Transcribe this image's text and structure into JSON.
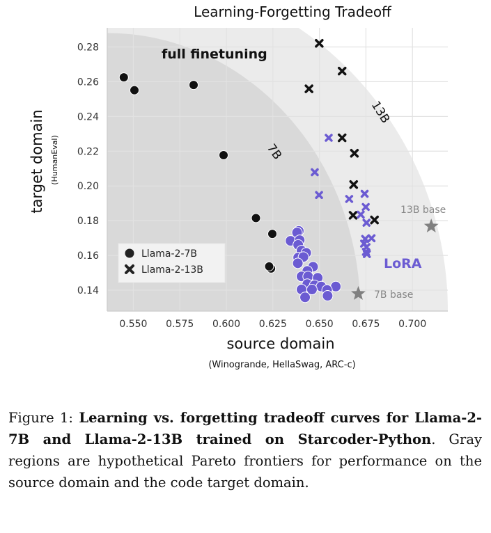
{
  "chart_data": {
    "type": "scatter",
    "title": "Learning-Forgetting Tradeoff",
    "xlabel": "source domain",
    "xlabel_sub": "(Winogrande, HellaSwag, ARC-c)",
    "ylabel": "target domain",
    "ylabel_sub": "(HumanEval)",
    "xlim": [
      0.536,
      0.719
    ],
    "ylim": [
      0.128,
      0.291
    ],
    "xticks": [
      "0.550",
      "0.575",
      "0.600",
      "0.625",
      "0.650",
      "0.675",
      "0.700"
    ],
    "yticks": [
      "0.14",
      "0.16",
      "0.18",
      "0.20",
      "0.22",
      "0.24",
      "0.26",
      "0.28"
    ],
    "grid": true,
    "legend_position": "lower-left",
    "legend": [
      {
        "label": "Llama-2-7B",
        "marker": "circle"
      },
      {
        "label": "Llama-2-13B",
        "marker": "x"
      }
    ],
    "colors": {
      "full_finetuning": "#111111",
      "lora": "#6b5bd2",
      "base": "#808080",
      "frontier_7b": "#d9d9d9",
      "frontier_13b": "#ebebeb"
    },
    "frontiers": [
      {
        "label": "13B",
        "x_intercept": 0.719,
        "y_intercept": 0.325
      },
      {
        "label": "7B",
        "x_intercept": 0.672,
        "y_intercept": 0.288
      }
    ],
    "annotations": {
      "full_finetuning": "full finetuning",
      "lora": "LoRA",
      "base_13b": "13B base",
      "base_7b": "7B base"
    },
    "series": [
      {
        "method": "full finetuning",
        "model": "Llama-2-7B",
        "marker": "circle",
        "points": [
          [
            0.5449,
            0.2625
          ],
          [
            0.5506,
            0.2551
          ],
          [
            0.5824,
            0.2581
          ],
          [
            0.5985,
            0.2177
          ],
          [
            0.6159,
            0.1815
          ],
          [
            0.6247,
            0.1724
          ],
          [
            0.624,
            0.1525
          ],
          [
            0.623,
            0.1537
          ]
        ]
      },
      {
        "method": "full finetuning",
        "model": "Llama-2-13B",
        "marker": "x",
        "points": [
          [
            0.6499,
            0.2821
          ],
          [
            0.6622,
            0.2661
          ],
          [
            0.6444,
            0.2559
          ],
          [
            0.6622,
            0.2277
          ],
          [
            0.6688,
            0.2188
          ],
          [
            0.6684,
            0.2008
          ],
          [
            0.6681,
            0.1831
          ],
          [
            0.6796,
            0.1804
          ]
        ]
      },
      {
        "method": "LoRA",
        "model": "Llama-2-7B",
        "marker": "circle",
        "points": [
          [
            0.6389,
            0.1741
          ],
          [
            0.638,
            0.1732
          ],
          [
            0.6345,
            0.1684
          ],
          [
            0.6394,
            0.1688
          ],
          [
            0.6386,
            0.1661
          ],
          [
            0.6404,
            0.1628
          ],
          [
            0.6429,
            0.1615
          ],
          [
            0.6386,
            0.1588
          ],
          [
            0.6414,
            0.1591
          ],
          [
            0.6384,
            0.1555
          ],
          [
            0.6466,
            0.1535
          ],
          [
            0.6435,
            0.1511
          ],
          [
            0.6404,
            0.1479
          ],
          [
            0.6439,
            0.1479
          ],
          [
            0.6491,
            0.1471
          ],
          [
            0.6435,
            0.1435
          ],
          [
            0.6474,
            0.1428
          ],
          [
            0.651,
            0.1421
          ],
          [
            0.6588,
            0.1421
          ],
          [
            0.6404,
            0.1404
          ],
          [
            0.646,
            0.1404
          ],
          [
            0.6541,
            0.1401
          ],
          [
            0.6544,
            0.1368
          ],
          [
            0.6423,
            0.1359
          ]
        ]
      },
      {
        "method": "LoRA",
        "model": "Llama-2-13B",
        "marker": "x",
        "points": [
          [
            0.655,
            0.2277
          ],
          [
            0.6475,
            0.2079
          ],
          [
            0.6498,
            0.1948
          ],
          [
            0.666,
            0.1925
          ],
          [
            0.6743,
            0.1955
          ],
          [
            0.6749,
            0.1879
          ],
          [
            0.6722,
            0.1835
          ],
          [
            0.6753,
            0.1788
          ],
          [
            0.6746,
            0.1695
          ],
          [
            0.678,
            0.1699
          ],
          [
            0.674,
            0.1668
          ],
          [
            0.6753,
            0.1648
          ],
          [
            0.675,
            0.1621
          ],
          [
            0.6755,
            0.1608
          ]
        ]
      },
      {
        "method": "base",
        "model": "Llama-2-13B",
        "marker": "star",
        "points": [
          [
            0.7101,
            0.1768
          ]
        ]
      },
      {
        "method": "base",
        "model": "Llama-2-7B",
        "marker": "star",
        "points": [
          [
            0.6709,
            0.138
          ]
        ]
      }
    ]
  },
  "caption": {
    "label": "Figure 1:",
    "bold": "Learning vs. forgetting tradeoff curves for Llama-2-7B and Llama-2-13B trained on Starcoder-Python",
    "rest": ". Gray regions are hypothetical Pareto frontiers for performance on the source domain and the code target domain."
  }
}
